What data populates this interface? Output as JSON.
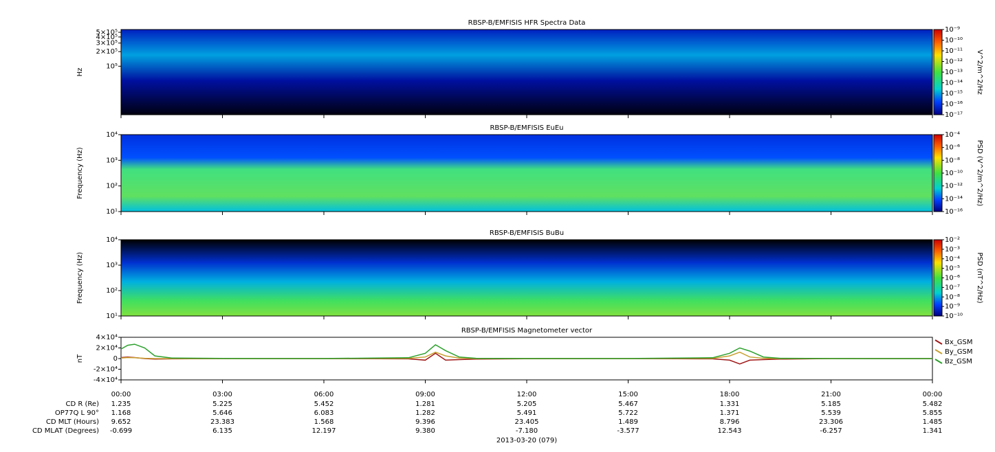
{
  "chart_data": [
    {
      "type": "spectrogram",
      "title": "RBSP-B/EMFISIS  HFR Spectra Data",
      "ylabel": "Hz",
      "ylog": true,
      "ylim": [
        10000,
        570000
      ],
      "yticks": [
        {
          "value": 100000,
          "label": "10⁵"
        },
        {
          "value": 200000,
          "label": "2×10⁵"
        },
        {
          "value": 300000,
          "label": "3×10⁵"
        },
        {
          "value": 400000,
          "label": "4×10⁵"
        },
        {
          "value": 500000,
          "label": "5×10⁵"
        }
      ],
      "colorbar_label": "V^2/m^2/Hz",
      "zlim": [
        1e-17,
        1e-09
      ],
      "zticks": [
        {
          "value": 1e-09,
          "label": "10⁻⁹"
        },
        {
          "value": 1e-10,
          "label": "10⁻¹⁰"
        },
        {
          "value": 1e-11,
          "label": "10⁻¹¹"
        },
        {
          "value": 1e-12,
          "label": "10⁻¹²"
        },
        {
          "value": 1e-13,
          "label": "10⁻¹³"
        },
        {
          "value": 1e-14,
          "label": "10⁻¹⁴"
        },
        {
          "value": 1e-15,
          "label": "10⁻¹⁵"
        },
        {
          "value": 1e-16,
          "label": "10⁻¹⁶"
        },
        {
          "value": 1e-17,
          "label": "10⁻¹⁷"
        }
      ]
    },
    {
      "type": "spectrogram",
      "title": "RBSP-B/EMFISIS  EuEu",
      "ylabel": "Frequency (Hz)",
      "ylog": true,
      "ylim": [
        10,
        10000
      ],
      "yticks": [
        {
          "value": 10,
          "label": "10¹"
        },
        {
          "value": 100,
          "label": "10²"
        },
        {
          "value": 1000,
          "label": "10³"
        },
        {
          "value": 10000,
          "label": "10⁴"
        }
      ],
      "colorbar_label": "PSD (V^2/m^2/Hz)",
      "zlim": [
        1e-16,
        0.0001
      ],
      "zticks": [
        {
          "value": 0.0001,
          "label": "10⁻⁴"
        },
        {
          "value": 1e-06,
          "label": "10⁻⁶"
        },
        {
          "value": 1e-08,
          "label": "10⁻⁸"
        },
        {
          "value": 1e-10,
          "label": "10⁻¹⁰"
        },
        {
          "value": 1e-12,
          "label": "10⁻¹²"
        },
        {
          "value": 1e-14,
          "label": "10⁻¹⁴"
        },
        {
          "value": 1e-16,
          "label": "10⁻¹⁶"
        }
      ]
    },
    {
      "type": "spectrogram",
      "title": "RBSP-B/EMFISIS  BuBu",
      "ylabel": "Frequency (Hz)",
      "ylog": true,
      "ylim": [
        10,
        10000
      ],
      "yticks": [
        {
          "value": 10,
          "label": "10¹"
        },
        {
          "value": 100,
          "label": "10²"
        },
        {
          "value": 1000,
          "label": "10³"
        },
        {
          "value": 10000,
          "label": "10⁴"
        }
      ],
      "colorbar_label": "PSD (nT^2/Hz)",
      "zlim": [
        1e-10,
        0.01
      ],
      "zticks": [
        {
          "value": 0.01,
          "label": "10⁻²"
        },
        {
          "value": 0.001,
          "label": "10⁻³"
        },
        {
          "value": 0.0001,
          "label": "10⁻⁴"
        },
        {
          "value": 1e-05,
          "label": "10⁻⁵"
        },
        {
          "value": 1e-06,
          "label": "10⁻⁶"
        },
        {
          "value": 1e-07,
          "label": "10⁻⁷"
        },
        {
          "value": 1e-08,
          "label": "10⁻⁸"
        },
        {
          "value": 1e-09,
          "label": "10⁻⁹"
        },
        {
          "value": 1e-10,
          "label": "10⁻¹⁰"
        }
      ]
    },
    {
      "type": "line",
      "title": "RBSP-B/EMFISIS  Magnetometer vector",
      "ylabel": "nT",
      "ylim": [
        -40000,
        40000
      ],
      "yticks": [
        {
          "value": 40000,
          "label": "4×10⁴"
        },
        {
          "value": 20000,
          "label": "2×10⁴"
        },
        0,
        {
          "value": -20000,
          "label": "-2×10⁴"
        },
        {
          "value": -40000,
          "label": "-4×10⁴"
        }
      ],
      "xlim": [
        0,
        24
      ],
      "xticks": [
        {
          "value": 0,
          "label": "00:00"
        },
        {
          "value": 3,
          "label": "03:00"
        },
        {
          "value": 6,
          "label": "06:00"
        },
        {
          "value": 9,
          "label": "09:00"
        },
        {
          "value": 12,
          "label": "12:00"
        },
        {
          "value": 15,
          "label": "15:00"
        },
        {
          "value": 18,
          "label": "18:00"
        },
        {
          "value": 21,
          "label": "21:00"
        },
        {
          "value": 24,
          "label": "00:00"
        }
      ],
      "x": [
        0,
        0.2,
        0.4,
        0.7,
        1.0,
        1.5,
        3,
        6,
        8.5,
        9.0,
        9.3,
        9.6,
        10,
        10.5,
        12,
        15,
        17.5,
        18.0,
        18.3,
        18.6,
        19,
        19.5,
        21,
        24
      ],
      "series": [
        {
          "name": "Bx_GSM",
          "color": "#a01818",
          "values": [
            2000,
            3000,
            2000,
            0,
            -1000,
            -500,
            0,
            0,
            -500,
            -3000,
            10000,
            -3000,
            -2000,
            -1000,
            -300,
            0,
            -500,
            -3000,
            -10000,
            -3000,
            -2000,
            -1000,
            0,
            0
          ]
        },
        {
          "name": "By_GSM",
          "color": "#c8a030",
          "values": [
            1000,
            2000,
            1500,
            500,
            0,
            0,
            0,
            0,
            500,
            3000,
            12000,
            5000,
            1000,
            0,
            0,
            0,
            500,
            5000,
            12000,
            3000,
            500,
            0,
            0,
            0
          ]
        },
        {
          "name": "Bz_GSM",
          "color": "#2ca02c",
          "values": [
            18000,
            25000,
            27000,
            20000,
            5000,
            1000,
            200,
            100,
            1500,
            10000,
            26000,
            15000,
            3000,
            500,
            100,
            100,
            1500,
            10000,
            20000,
            14000,
            3000,
            500,
            100,
            0
          ]
        }
      ]
    }
  ],
  "ephemeris": {
    "rows": [
      {
        "label": "CD R (Re)",
        "values": [
          "1.235",
          "5.225",
          "5.452",
          "1.281",
          "5.205",
          "5.467",
          "1.331",
          "5.185",
          "5.482"
        ]
      },
      {
        "label": "OP77Q L 90°",
        "values": [
          "1.168",
          "5.646",
          "6.083",
          "1.282",
          "5.491",
          "5.722",
          "1.371",
          "5.539",
          "5.855"
        ]
      },
      {
        "label": "CD MLT (Hours)",
        "values": [
          "9.652",
          "23.383",
          "1.568",
          "9.396",
          "23.405",
          "1.489",
          "8.796",
          "23.306",
          "1.485"
        ]
      },
      {
        "label": "CD MLAT (Degrees)",
        "values": [
          "-0.699",
          "6.135",
          "12.197",
          "9.380",
          "-7.180",
          "-3.577",
          "12.543",
          "-6.257",
          "1.341"
        ]
      }
    ],
    "date": "2013-03-20 (079)"
  }
}
